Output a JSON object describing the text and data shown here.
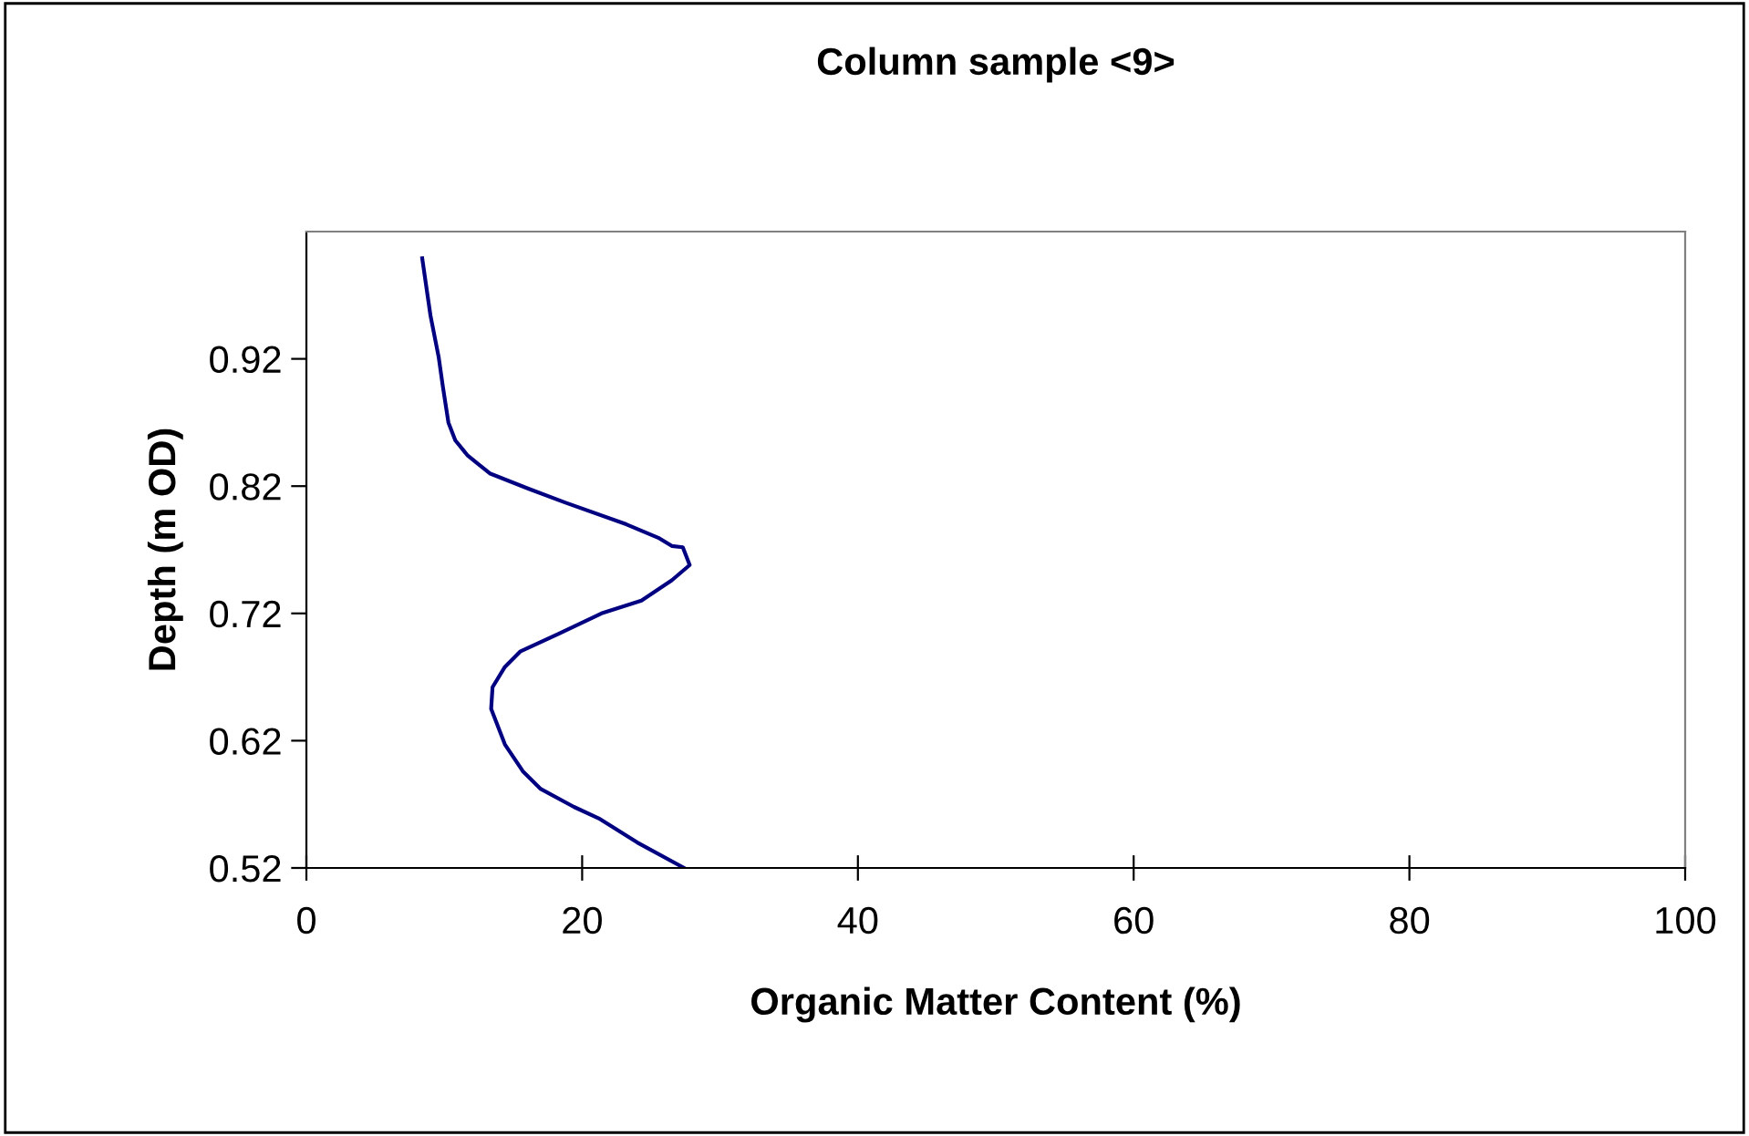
{
  "chart_data": {
    "type": "line",
    "title": "Column sample <9>",
    "xlabel": "Organic Matter Content (%)",
    "ylabel": "Depth (m OD)",
    "xlim": [
      0,
      100
    ],
    "xticks": [
      0,
      20,
      40,
      60,
      80,
      100
    ],
    "ylim": [
      0.52,
      1.02
    ],
    "yticks": [
      {
        "value": 0.52,
        "label": "0.52"
      },
      {
        "value": 0.62,
        "label": "0.62"
      },
      {
        "value": 0.72,
        "label": "0.72"
      },
      {
        "value": 0.82,
        "label": "0.82"
      },
      {
        "value": 0.92,
        "label": "0.92"
      }
    ],
    "grid": false,
    "legend": false,
    "marker": "none",
    "line_style": "solid",
    "series": [
      {
        "color": "#000080",
        "x": [
          8.4,
          9.0,
          9.6,
          9.9,
          10.3,
          10.8,
          11.7,
          13.3,
          16.1,
          18.8,
          23.2,
          25.6,
          26.5,
          27.3,
          27.8,
          26.5,
          24.3,
          21.4,
          18.3,
          15.5,
          14.4,
          13.5,
          13.4,
          14.4,
          15.7,
          17.0,
          19.4,
          21.2,
          24.0,
          27.4
        ],
        "values": [
          0.999,
          0.954,
          0.921,
          0.898,
          0.87,
          0.856,
          0.844,
          0.83,
          0.818,
          0.807,
          0.79,
          0.779,
          0.773,
          0.772,
          0.758,
          0.746,
          0.73,
          0.72,
          0.704,
          0.69,
          0.678,
          0.662,
          0.645,
          0.617,
          0.596,
          0.582,
          0.568,
          0.559,
          0.54,
          0.52
        ]
      }
    ]
  }
}
